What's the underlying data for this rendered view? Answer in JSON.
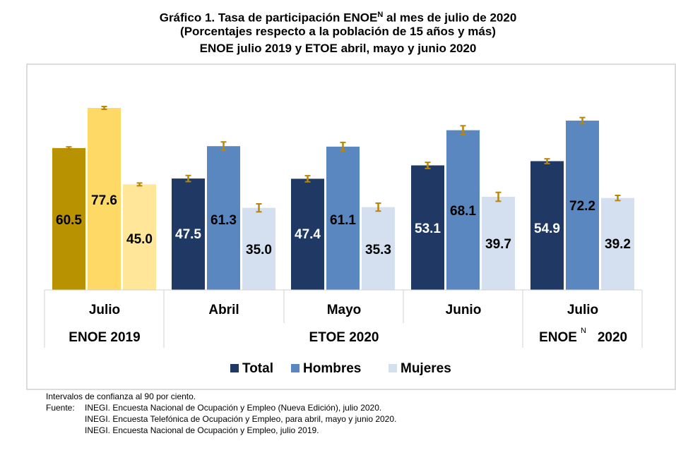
{
  "title": {
    "line1_part1": "Gráfico 1. Tasa de participación ENOE",
    "line1_sup": "N",
    "line1_part2": " al mes de julio de 2020",
    "line2": "(Porcentajes respecto a la población de 15 años y más)",
    "line3": "ENOE julio 2019 y ETOE abril, mayo y junio  2020"
  },
  "chart_data": {
    "type": "bar",
    "categories": [
      "Julio",
      "Abril",
      "Mayo",
      "Junio",
      "Julio"
    ],
    "groups": [
      {
        "label": "ENOE 2019",
        "sup": "",
        "from": 0,
        "to": 0
      },
      {
        "label": "ETOE 2020",
        "sup": "",
        "from": 1,
        "to": 3
      },
      {
        "label": "ENOE",
        "sup": "N",
        "suffix": "2020",
        "from": 4,
        "to": 4
      }
    ],
    "series": [
      {
        "name": "Total",
        "values": [
          60.5,
          47.5,
          47.4,
          53.1,
          54.9
        ],
        "err": [
          0.5,
          1.3,
          1.3,
          1.3,
          1.0
        ]
      },
      {
        "name": "Hombres",
        "values": [
          77.6,
          61.3,
          61.1,
          68.1,
          72.2
        ],
        "err": [
          0.6,
          1.8,
          1.8,
          1.9,
          1.3
        ]
      },
      {
        "name": "Mujeres",
        "values": [
          45.0,
          35.0,
          35.3,
          39.7,
          39.2
        ],
        "err": [
          0.6,
          1.7,
          1.7,
          1.9,
          1.1
        ]
      }
    ],
    "colors": {
      "first_group": [
        "#b89200",
        "#ffd966",
        "#ffe699"
      ],
      "other_groups": [
        "#1f3864",
        "#5b87c0",
        "#d4e0f0"
      ],
      "error_bar": "#b8860b",
      "label_light": "#ffffff",
      "label_dark": "#000000"
    },
    "ylim": [
      0,
      100
    ],
    "legend_position": "bottom",
    "grid": false
  },
  "footer": {
    "line1": "Intervalos de confianza al 90 por ciento.",
    "source_label": "Fuente:",
    "source1": "INEGI. Encuesta Nacional de Ocupación y Empleo (Nueva Edición), julio 2020.",
    "source2": "INEGI. Encuesta Telefónica de Ocupación y Empleo, para abril, mayo y junio 2020.",
    "source3": "INEGI. Encuesta Nacional de Ocupación y Empleo, julio 2019."
  }
}
